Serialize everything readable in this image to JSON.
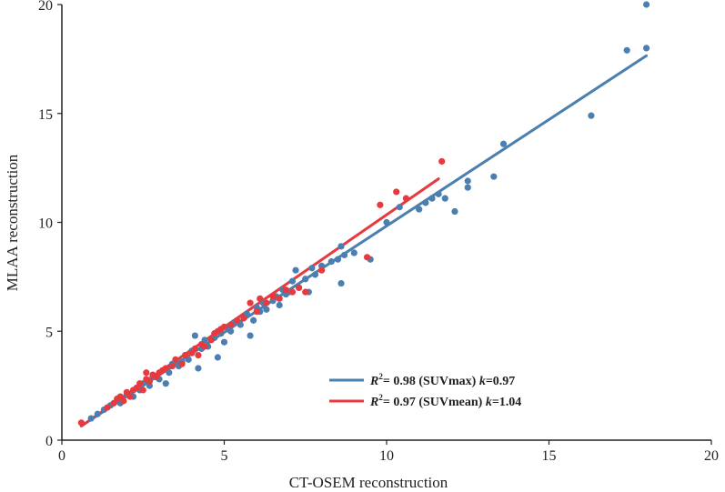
{
  "chart_data": {
    "type": "scatter",
    "title": "",
    "xlabel": "CT-OSEM reconstruction",
    "ylabel": "MLAA reconstruction",
    "xlim": [
      0,
      20
    ],
    "ylim": [
      0,
      20
    ],
    "xticks": [
      0,
      5,
      10,
      15,
      20
    ],
    "yticks": [
      0,
      5,
      10,
      15,
      20
    ],
    "grid": false,
    "legend_position": "bottom-right",
    "colors": {
      "suvmax": "#4a7fb0",
      "suvmean": "#e63a3f"
    },
    "series": [
      {
        "name": "SUVmax",
        "r2_label": "R",
        "r2_sup": "2",
        "legend_text": "= 0.98 (SUVmax) ",
        "k_label": "k",
        "k_text": "=0.97",
        "r2": 0.98,
        "k": 0.97,
        "fit_line": {
          "x": [
            0.6,
            18.0
          ],
          "y": [
            0.65,
            17.65
          ]
        },
        "points": [
          [
            0.9,
            1.0
          ],
          [
            1.1,
            1.2
          ],
          [
            1.3,
            1.4
          ],
          [
            1.5,
            1.6
          ],
          [
            1.7,
            1.8
          ],
          [
            1.8,
            1.7
          ],
          [
            2.0,
            2.1
          ],
          [
            2.2,
            2.0
          ],
          [
            2.4,
            2.3
          ],
          [
            2.5,
            2.6
          ],
          [
            2.7,
            2.5
          ],
          [
            2.8,
            2.9
          ],
          [
            3.0,
            2.8
          ],
          [
            3.1,
            3.2
          ],
          [
            3.2,
            2.6
          ],
          [
            3.3,
            3.1
          ],
          [
            3.4,
            3.5
          ],
          [
            3.6,
            3.4
          ],
          [
            3.7,
            3.6
          ],
          [
            3.8,
            3.9
          ],
          [
            3.9,
            3.7
          ],
          [
            4.0,
            4.1
          ],
          [
            4.1,
            4.8
          ],
          [
            4.2,
            3.3
          ],
          [
            4.3,
            4.2
          ],
          [
            4.4,
            4.6
          ],
          [
            4.5,
            4.3
          ],
          [
            4.7,
            4.7
          ],
          [
            4.8,
            3.8
          ],
          [
            4.9,
            4.9
          ],
          [
            5.0,
            4.5
          ],
          [
            5.1,
            5.2
          ],
          [
            5.2,
            5.0
          ],
          [
            5.3,
            5.4
          ],
          [
            5.5,
            5.3
          ],
          [
            5.6,
            5.6
          ],
          [
            5.7,
            5.8
          ],
          [
            5.8,
            4.8
          ],
          [
            5.9,
            5.5
          ],
          [
            6.0,
            6.1
          ],
          [
            6.1,
            5.9
          ],
          [
            6.2,
            6.3
          ],
          [
            6.3,
            6.0
          ],
          [
            6.5,
            6.4
          ],
          [
            6.6,
            6.6
          ],
          [
            6.7,
            6.2
          ],
          [
            6.8,
            6.9
          ],
          [
            6.9,
            6.7
          ],
          [
            7.0,
            6.8
          ],
          [
            7.1,
            7.3
          ],
          [
            7.2,
            7.8
          ],
          [
            7.3,
            7.0
          ],
          [
            7.5,
            7.4
          ],
          [
            7.6,
            6.8
          ],
          [
            7.7,
            7.9
          ],
          [
            7.8,
            7.6
          ],
          [
            8.0,
            8.0
          ],
          [
            8.3,
            8.2
          ],
          [
            8.5,
            8.3
          ],
          [
            8.6,
            8.9
          ],
          [
            8.6,
            7.2
          ],
          [
            8.7,
            8.5
          ],
          [
            9.0,
            8.6
          ],
          [
            9.5,
            8.3
          ],
          [
            10.0,
            10.0
          ],
          [
            10.4,
            10.7
          ],
          [
            11.0,
            10.6
          ],
          [
            11.2,
            10.9
          ],
          [
            11.4,
            11.1
          ],
          [
            11.6,
            11.3
          ],
          [
            11.8,
            11.1
          ],
          [
            12.1,
            10.5
          ],
          [
            12.5,
            11.6
          ],
          [
            12.5,
            11.9
          ],
          [
            13.3,
            12.1
          ],
          [
            13.6,
            13.6
          ],
          [
            16.3,
            14.9
          ],
          [
            17.4,
            17.9
          ],
          [
            18.0,
            18.0
          ],
          [
            18.0,
            20.0
          ]
        ]
      },
      {
        "name": "SUVmean",
        "r2_label": "R",
        "r2_sup": "2",
        "legend_text": "= 0.97 (SUVmean) ",
        "k_label": "k",
        "k_text": "=1.04",
        "r2": 0.97,
        "k": 1.04,
        "fit_line": {
          "x": [
            0.6,
            11.6
          ],
          "y": [
            0.65,
            12.0
          ]
        },
        "points": [
          [
            0.6,
            0.8
          ],
          [
            1.4,
            1.5
          ],
          [
            1.6,
            1.7
          ],
          [
            1.7,
            1.9
          ],
          [
            1.8,
            2.0
          ],
          [
            1.9,
            1.8
          ],
          [
            2.0,
            2.2
          ],
          [
            2.1,
            2.0
          ],
          [
            2.2,
            2.3
          ],
          [
            2.3,
            2.4
          ],
          [
            2.4,
            2.6
          ],
          [
            2.5,
            2.3
          ],
          [
            2.6,
            3.1
          ],
          [
            2.6,
            2.8
          ],
          [
            2.7,
            2.7
          ],
          [
            2.8,
            3.0
          ],
          [
            2.9,
            2.9
          ],
          [
            3.0,
            3.1
          ],
          [
            3.1,
            3.2
          ],
          [
            3.2,
            3.3
          ],
          [
            3.4,
            3.4
          ],
          [
            3.5,
            3.7
          ],
          [
            3.7,
            3.5
          ],
          [
            3.8,
            3.9
          ],
          [
            4.0,
            4.0
          ],
          [
            4.1,
            4.2
          ],
          [
            4.2,
            3.9
          ],
          [
            4.3,
            4.4
          ],
          [
            4.4,
            4.3
          ],
          [
            4.6,
            4.6
          ],
          [
            4.7,
            4.9
          ],
          [
            4.8,
            5.0
          ],
          [
            4.9,
            5.1
          ],
          [
            5.0,
            5.2
          ],
          [
            5.2,
            5.3
          ],
          [
            5.4,
            5.5
          ],
          [
            5.6,
            5.6
          ],
          [
            5.8,
            6.3
          ],
          [
            6.0,
            5.9
          ],
          [
            6.1,
            6.5
          ],
          [
            6.3,
            6.3
          ],
          [
            6.5,
            6.6
          ],
          [
            6.7,
            6.5
          ],
          [
            6.9,
            6.9
          ],
          [
            7.1,
            6.8
          ],
          [
            7.3,
            7.0
          ],
          [
            7.5,
            6.8
          ],
          [
            8.0,
            7.8
          ],
          [
            9.4,
            8.4
          ],
          [
            9.8,
            10.8
          ],
          [
            10.3,
            11.4
          ],
          [
            10.6,
            11.1
          ],
          [
            11.7,
            12.8
          ]
        ]
      }
    ]
  }
}
